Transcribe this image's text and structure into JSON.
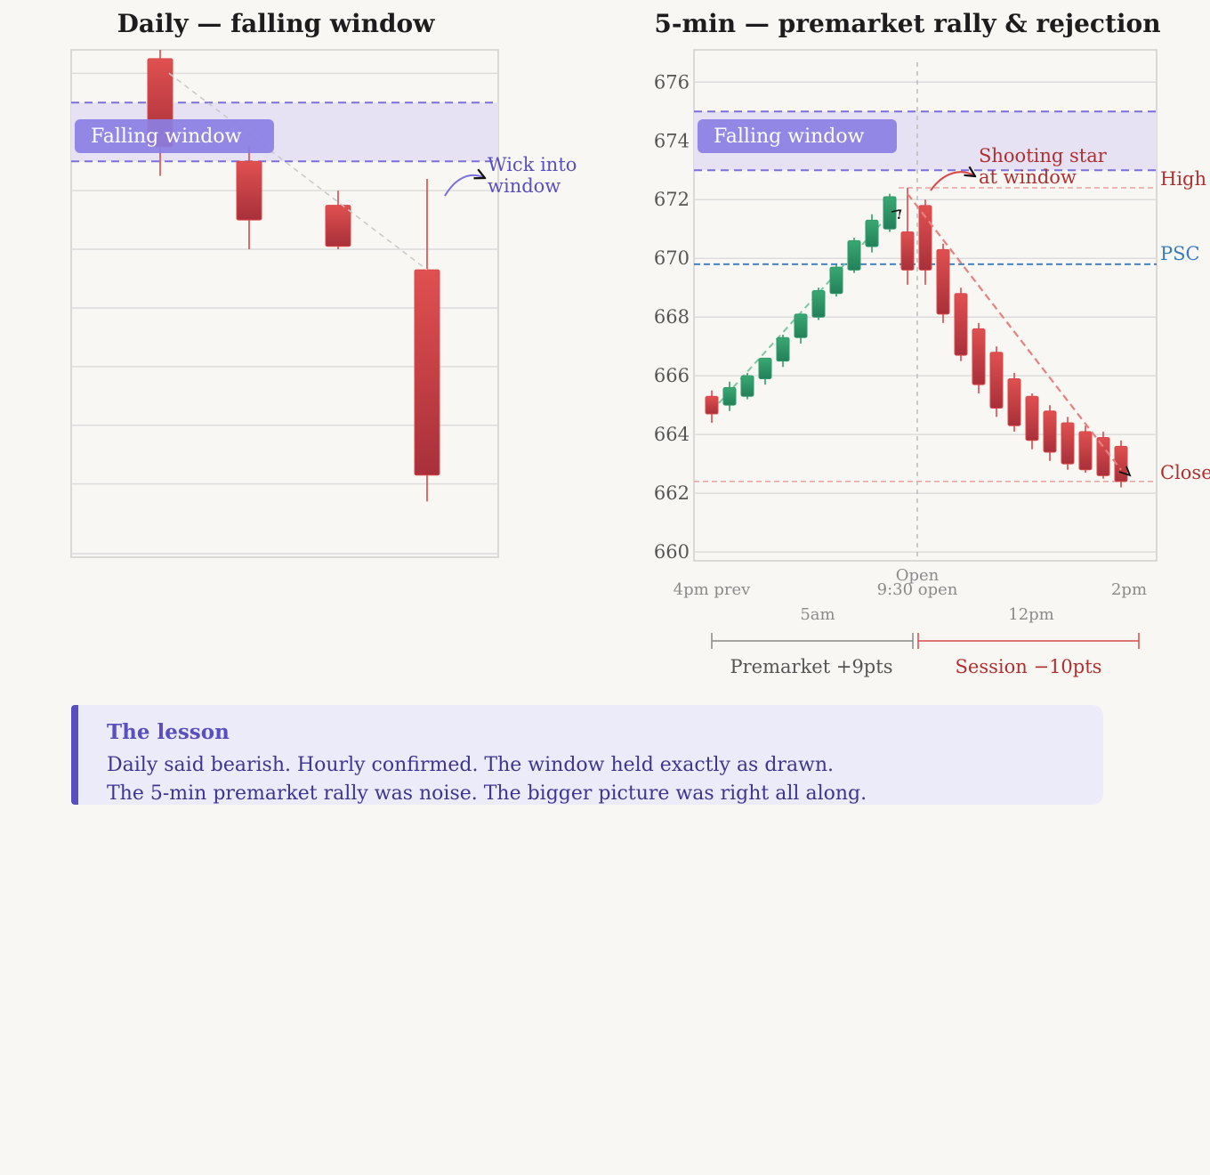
{
  "colors": {
    "bearish": "#d94848",
    "bullish": "#2f9a6a",
    "window_band": "#e6e1f3",
    "window_line": "#7b6fdc",
    "window_label_bg": "#8b7fe3",
    "psc": "#3a7bbf",
    "annotation_red": "#b0302f",
    "annotation_purple": "#5a4fbf",
    "grid": "#dcdcdc",
    "background": "#f9f7f3"
  },
  "chart_data": [
    {
      "type": "candlestick",
      "title": "Daily — falling window",
      "xlabel": "",
      "ylabel": "",
      "ylim": [
        659.5,
        676.8
      ],
      "grid": true,
      "candles": [
        {
          "open": 676.5,
          "high": 677.0,
          "low": 672.5,
          "close": 673.5
        },
        {
          "open": 673.0,
          "high": 673.5,
          "low": 670.0,
          "close": 671.0
        },
        {
          "open": 671.5,
          "high": 672.0,
          "low": 670.0,
          "close": 670.1
        },
        {
          "open": 669.3,
          "high": 672.4,
          "low": 661.4,
          "close": 662.3
        }
      ],
      "falling_window": {
        "low": 673.0,
        "high": 675.0,
        "label": "Falling window"
      },
      "trend_line": {
        "from": [
          1,
          676.0
        ],
        "to": [
          4,
          669.3
        ]
      },
      "annotations": [
        {
          "text_lines": [
            "Wick into",
            "window"
          ]
        }
      ]
    },
    {
      "type": "candlestick",
      "title": "5-min — premarket rally & rejection",
      "xlabel": "",
      "ylabel": "",
      "ylim": [
        659.7,
        677.1
      ],
      "yticks": [
        660,
        662,
        664,
        666,
        668,
        670,
        672,
        674,
        676
      ],
      "grid": true,
      "x_tick_labels": [
        "4pm prev",
        "9:30 open",
        "2pm"
      ],
      "x_tick_labels_secondary": [
        "5am",
        "12pm"
      ],
      "open_marker_label": "Open",
      "candles": [
        {
          "open": 665.3,
          "high": 665.5,
          "low": 664.4,
          "close": 664.7
        },
        {
          "open": 665.0,
          "high": 665.8,
          "low": 664.8,
          "close": 665.6
        },
        {
          "open": 665.3,
          "high": 666.1,
          "low": 665.2,
          "close": 666.0
        },
        {
          "open": 665.9,
          "high": 666.6,
          "low": 665.7,
          "close": 666.6
        },
        {
          "open": 666.5,
          "high": 667.4,
          "low": 666.3,
          "close": 667.3
        },
        {
          "open": 667.3,
          "high": 668.1,
          "low": 667.1,
          "close": 668.1
        },
        {
          "open": 668.0,
          "high": 669.0,
          "low": 667.9,
          "close": 668.9
        },
        {
          "open": 668.8,
          "high": 669.8,
          "low": 668.7,
          "close": 669.7
        },
        {
          "open": 669.6,
          "high": 670.7,
          "low": 669.5,
          "close": 670.6
        },
        {
          "open": 670.4,
          "high": 671.5,
          "low": 670.2,
          "close": 671.3
        },
        {
          "open": 671.0,
          "high": 672.2,
          "low": 670.9,
          "close": 672.1
        },
        {
          "open": 670.9,
          "high": 672.4,
          "low": 669.1,
          "close": 669.6
        },
        {
          "open": 671.8,
          "high": 672.0,
          "low": 669.1,
          "close": 669.6
        },
        {
          "open": 670.3,
          "high": 670.5,
          "low": 667.8,
          "close": 668.1
        },
        {
          "open": 668.8,
          "high": 669.0,
          "low": 666.5,
          "close": 666.7
        },
        {
          "open": 667.6,
          "high": 667.8,
          "low": 665.4,
          "close": 665.7
        },
        {
          "open": 666.8,
          "high": 667.0,
          "low": 664.6,
          "close": 664.9
        },
        {
          "open": 665.9,
          "high": 666.1,
          "low": 664.1,
          "close": 664.3
        },
        {
          "open": 665.3,
          "high": 665.4,
          "low": 663.5,
          "close": 663.8
        },
        {
          "open": 664.8,
          "high": 665.0,
          "low": 663.1,
          "close": 663.4
        },
        {
          "open": 664.4,
          "high": 664.6,
          "low": 662.8,
          "close": 663.0
        },
        {
          "open": 664.1,
          "high": 664.3,
          "low": 662.7,
          "close": 662.8
        },
        {
          "open": 663.9,
          "high": 664.1,
          "low": 662.5,
          "close": 662.6
        },
        {
          "open": 663.6,
          "high": 663.8,
          "low": 662.2,
          "close": 662.4
        }
      ],
      "falling_window": {
        "low": 673.0,
        "high": 675.0,
        "label": "Falling window"
      },
      "high_line": {
        "value": 672.4,
        "label": "High"
      },
      "psc_line": {
        "value": 669.8,
        "label": "PSC"
      },
      "close_line": {
        "value": 662.4,
        "label": "Close"
      },
      "rally_trend": {
        "from": [
          1,
          664.8
        ],
        "to": [
          11,
          671.5
        ]
      },
      "drop_trend": {
        "from": [
          12,
          672.2
        ],
        "to": [
          24,
          662.8
        ]
      },
      "annotations": [
        {
          "text_lines": [
            "Shooting star",
            "at window"
          ]
        }
      ],
      "candle_marks": [
        "!"
      ],
      "segments": [
        {
          "label": "Premarket +9pts"
        },
        {
          "label": "Session −10pts"
        }
      ]
    }
  ],
  "lesson": {
    "title": "The lesson",
    "lines": [
      "Daily said bearish. Hourly confirmed. The window held exactly as drawn.",
      "The 5-min premarket rally was noise. The bigger picture was right all along."
    ]
  }
}
